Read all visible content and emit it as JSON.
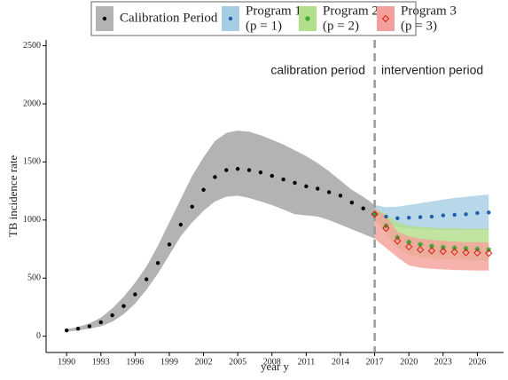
{
  "chart_data": {
    "type": "scatter",
    "xlabel": "year y",
    "ylabel": "TB incidence rate",
    "xlim": [
      1988.2,
      2028.3
    ],
    "ylim": [
      -140,
      2550
    ],
    "xticks": [
      1990,
      1993,
      1996,
      1999,
      2002,
      2005,
      2008,
      2011,
      2014,
      2017,
      2020,
      2023,
      2026
    ],
    "yticks": [
      0,
      500,
      1000,
      1500,
      2000,
      2500
    ],
    "vline": 2017,
    "annotations": [
      "calibration period",
      "intervention period"
    ],
    "series": [
      {
        "name": "Calibration Period",
        "color": "#000000",
        "band_color": "#b3b3b3",
        "marker": "dot",
        "x": [
          1990,
          1991,
          1992,
          1993,
          1994,
          1995,
          1996,
          1997,
          1998,
          1999,
          2000,
          2001,
          2002,
          2003,
          2004,
          2005,
          2006,
          2007,
          2008,
          2009,
          2010,
          2011,
          2012,
          2013,
          2014,
          2015,
          2016,
          2017
        ],
        "values": [
          50,
          65,
          85,
          120,
          180,
          260,
          360,
          490,
          630,
          790,
          960,
          1115,
          1260,
          1370,
          1430,
          1440,
          1430,
          1410,
          1380,
          1350,
          1320,
          1290,
          1270,
          1240,
          1210,
          1150,
          1100,
          1050
        ],
        "lower": [
          40,
          50,
          65,
          85,
          125,
          190,
          280,
          400,
          540,
          700,
          860,
          980,
          1080,
          1160,
          1200,
          1210,
          1190,
          1160,
          1130,
          1090,
          1050,
          1040,
          1030,
          1000,
          960,
          920,
          880,
          840
        ],
        "upper": [
          60,
          80,
          110,
          160,
          240,
          340,
          460,
          600,
          780,
          980,
          1180,
          1380,
          1540,
          1680,
          1750,
          1770,
          1760,
          1730,
          1690,
          1650,
          1600,
          1550,
          1490,
          1420,
          1340,
          1260,
          1200,
          1130
        ]
      },
      {
        "name": "Program 1",
        "subname": "(p = 1)",
        "color": "#1f5fa8",
        "band_color": "#a6cde3",
        "marker": "dot",
        "x": [
          2017,
          2018,
          2019,
          2020,
          2021,
          2022,
          2023,
          2024,
          2025,
          2026,
          2027
        ],
        "values": [
          1050,
          1030,
          1015,
          1020,
          1025,
          1030,
          1040,
          1045,
          1050,
          1060,
          1065
        ],
        "lower": [
          1000,
          960,
          940,
          930,
          920,
          915,
          915,
          915,
          915,
          915,
          915
        ],
        "upper": [
          1130,
          1110,
          1115,
          1130,
          1145,
          1160,
          1175,
          1190,
          1200,
          1210,
          1220
        ]
      },
      {
        "name": "Program 2",
        "subname": "(p = 2)",
        "color": "#33a02c",
        "band_color": "#b2df8a",
        "marker": "asterisk",
        "x": [
          2017,
          2018,
          2019,
          2020,
          2021,
          2022,
          2023,
          2024,
          2025,
          2026,
          2027
        ],
        "values": [
          1050,
          950,
          850,
          810,
          790,
          775,
          765,
          760,
          755,
          750,
          745
        ],
        "lower": [
          1000,
          880,
          760,
          700,
          680,
          670,
          660,
          660,
          650,
          650,
          650
        ],
        "upper": [
          1100,
          1050,
          980,
          950,
          940,
          935,
          930,
          930,
          925,
          925,
          925
        ]
      },
      {
        "name": "Program 3",
        "subname": "(p = 3)",
        "color": "#e31a1c",
        "band_color": "#f4a09a",
        "marker": "diamond",
        "x": [
          2017,
          2018,
          2019,
          2020,
          2021,
          2022,
          2023,
          2024,
          2025,
          2026,
          2027
        ],
        "values": [
          1050,
          930,
          820,
          770,
          745,
          735,
          730,
          725,
          720,
          718,
          715
        ],
        "lower": [
          840,
          760,
          680,
          610,
          590,
          580,
          575,
          570,
          568,
          565,
          565
        ],
        "upper": [
          1100,
          1030,
          900,
          860,
          840,
          830,
          820,
          815,
          810,
          810,
          808
        ]
      }
    ]
  }
}
